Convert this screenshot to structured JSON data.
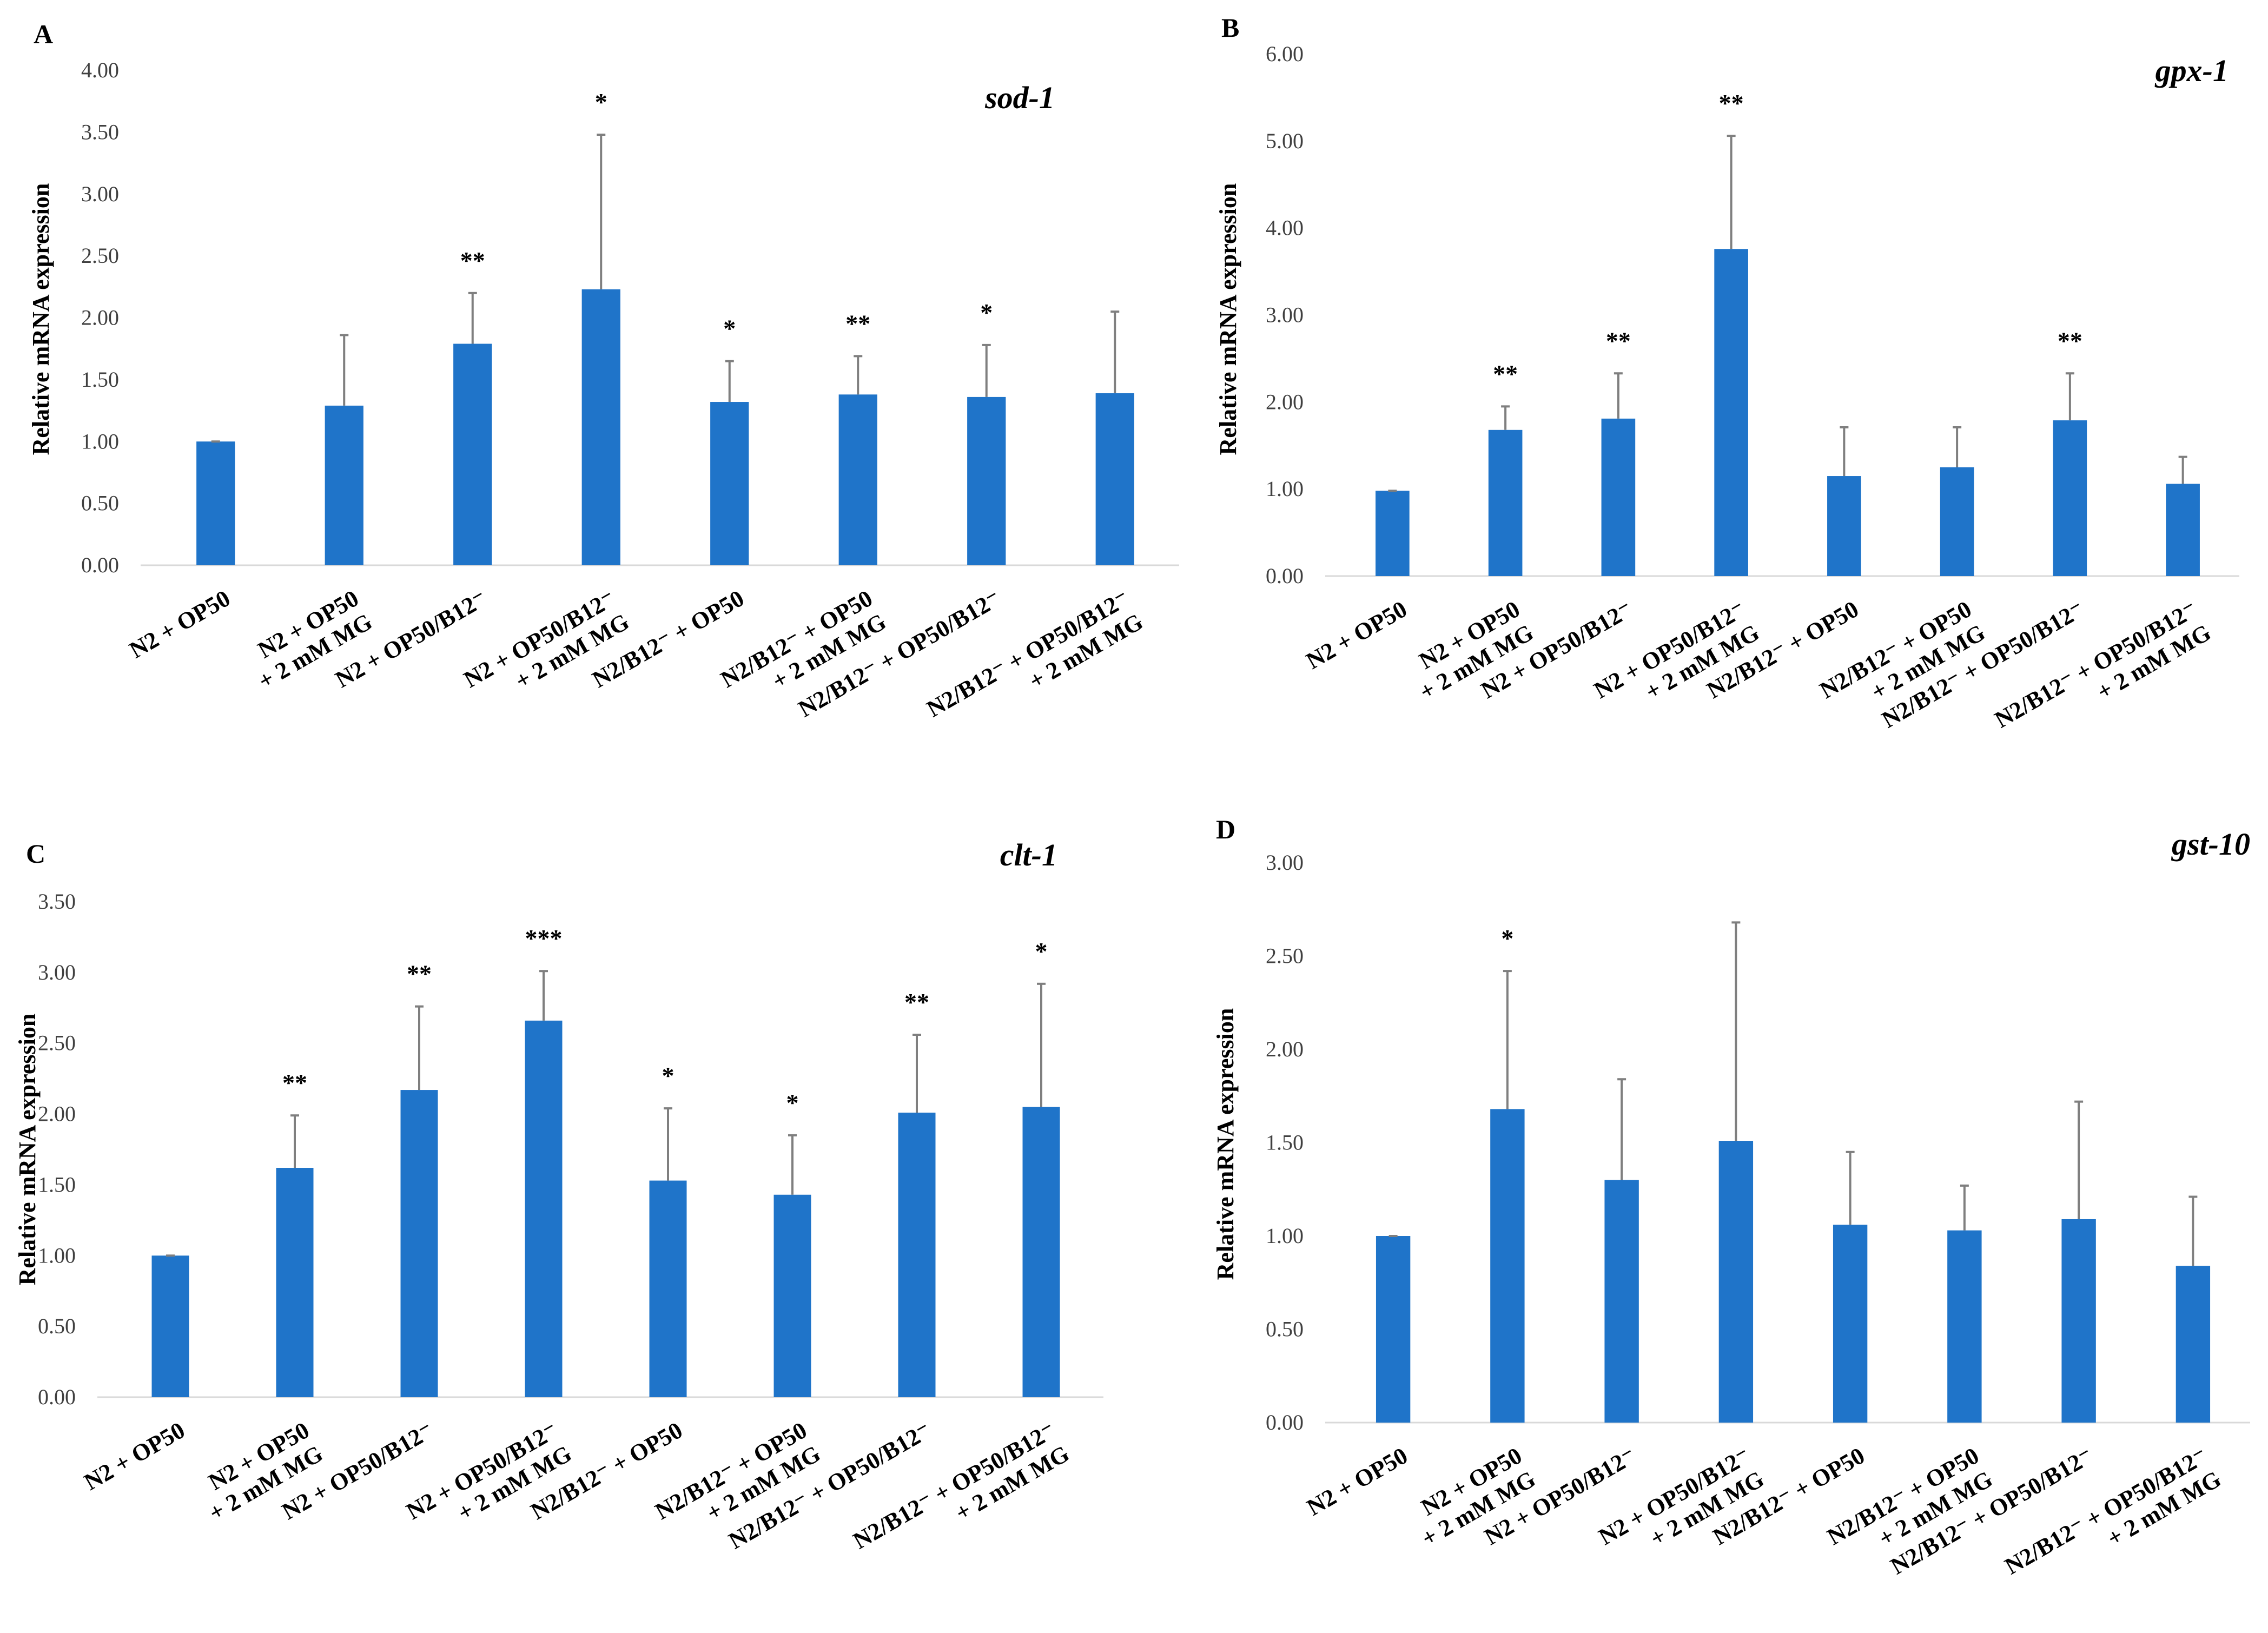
{
  "bar_color": "#1f74c9",
  "error_color": "#7f7f7f",
  "chart_data": [
    {
      "type": "bar",
      "panel": "A",
      "gene": "sod-1",
      "ylabel": "Relative mRNA expression",
      "ylim": [
        0,
        4
      ],
      "yticks": [
        "0.00",
        "0.50",
        "1.00",
        "1.50",
        "2.00",
        "2.50",
        "3.00",
        "3.50",
        "4.00"
      ],
      "categories": [
        [
          "N2 + OP50"
        ],
        [
          "N2 + OP50",
          "+ 2 mM MG"
        ],
        [
          "N2 + OP50/B12⁻"
        ],
        [
          "N2 + OP50/B12⁻",
          "+ 2 mM MG"
        ],
        [
          "N2/B12⁻ + OP50"
        ],
        [
          "N2/B12⁻ + OP50",
          "+ 2 mM MG"
        ],
        [
          "N2/B12⁻ + OP50/B12⁻"
        ],
        [
          "N2/B12⁻ + OP50/B12⁻",
          "+ 2 mM MG"
        ]
      ],
      "values": [
        1.0,
        1.29,
        1.79,
        2.23,
        1.32,
        1.38,
        1.36,
        1.39
      ],
      "errors": [
        0.0,
        0.57,
        0.41,
        1.25,
        0.33,
        0.31,
        0.42,
        0.66
      ],
      "significance": [
        "",
        "",
        "**",
        "*",
        "*",
        "**",
        "*",
        ""
      ]
    },
    {
      "type": "bar",
      "panel": "B",
      "gene": "gpx-1",
      "ylabel": "Relative mRNA expression",
      "ylim": [
        0,
        6
      ],
      "yticks": [
        "0.00",
        "1.00",
        "2.00",
        "3.00",
        "4.00",
        "5.00",
        "6.00"
      ],
      "categories": [
        [
          "N2 + OP50"
        ],
        [
          "N2 + OP50",
          "+ 2 mM MG"
        ],
        [
          "N2 + OP50/B12⁻"
        ],
        [
          "N2 + OP50/B12⁻",
          "+ 2 mM MG"
        ],
        [
          "N2/B12⁻ + OP50"
        ],
        [
          "N2/B12⁻ + OP50",
          "+ 2 mM MG"
        ],
        [
          "N2/B12⁻ + OP50/B12⁻"
        ],
        [
          "N2/B12⁻ + OP50/B12⁻",
          "+ 2 mM MG"
        ]
      ],
      "values": [
        0.98,
        1.68,
        1.81,
        3.76,
        1.15,
        1.25,
        1.79,
        1.06
      ],
      "errors": [
        0.0,
        0.27,
        0.52,
        1.3,
        0.56,
        0.46,
        0.54,
        0.31
      ],
      "significance": [
        "",
        "**",
        "**",
        "**",
        "",
        "",
        "**",
        ""
      ]
    },
    {
      "type": "bar",
      "panel": "C",
      "gene": "clt-1",
      "ylabel": "Relative mRNA expression",
      "ylim": [
        0,
        3.5
      ],
      "yticks": [
        "0.00",
        "0.50",
        "1.00",
        "1.50",
        "2.00",
        "2.50",
        "3.00",
        "3.50"
      ],
      "categories": [
        [
          "N2 + OP50"
        ],
        [
          "N2 + OP50",
          "+ 2 mM MG"
        ],
        [
          "N2 + OP50/B12⁻"
        ],
        [
          "N2 + OP50/B12⁻",
          "+ 2 mM MG"
        ],
        [
          "N2/B12⁻ + OP50"
        ],
        [
          "N2/B12⁻ + OP50",
          "+ 2 mM MG"
        ],
        [
          "N2/B12⁻ + OP50/B12⁻"
        ],
        [
          "N2/B12⁻ + OP50/B12⁻",
          "+ 2 mM MG"
        ]
      ],
      "values": [
        1.0,
        1.62,
        2.17,
        2.66,
        1.53,
        1.43,
        2.01,
        2.05
      ],
      "errors": [
        0.0,
        0.37,
        0.59,
        0.35,
        0.51,
        0.42,
        0.55,
        0.87
      ],
      "significance": [
        "",
        "**",
        "**",
        "***",
        "*",
        "*",
        "**",
        "*"
      ]
    },
    {
      "type": "bar",
      "panel": "D",
      "gene": "gst-10",
      "ylabel": "Relative mRNA expression",
      "ylim": [
        0,
        3
      ],
      "yticks": [
        "0.00",
        "0.50",
        "1.00",
        "1.50",
        "2.00",
        "2.50",
        "3.00"
      ],
      "categories": [
        [
          "N2 + OP50"
        ],
        [
          "N2 + OP50",
          "+ 2 mM MG"
        ],
        [
          "N2 + OP50/B12⁻"
        ],
        [
          "N2 + OP50/B12⁻",
          "+ 2 mM MG"
        ],
        [
          "N2/B12⁻ + OP50"
        ],
        [
          "N2/B12⁻ + OP50",
          "+ 2 mM MG"
        ],
        [
          "N2/B12⁻ + OP50/B12⁻"
        ],
        [
          "N2/B12⁻ + OP50/B12⁻",
          "+ 2 mM MG"
        ]
      ],
      "values": [
        1.0,
        1.68,
        1.3,
        1.51,
        1.06,
        1.03,
        1.09,
        0.84
      ],
      "errors": [
        0.0,
        0.74,
        0.54,
        1.17,
        0.39,
        0.24,
        0.63,
        0.37
      ],
      "significance": [
        "",
        "*",
        "",
        "",
        "",
        "",
        "",
        ""
      ]
    }
  ]
}
